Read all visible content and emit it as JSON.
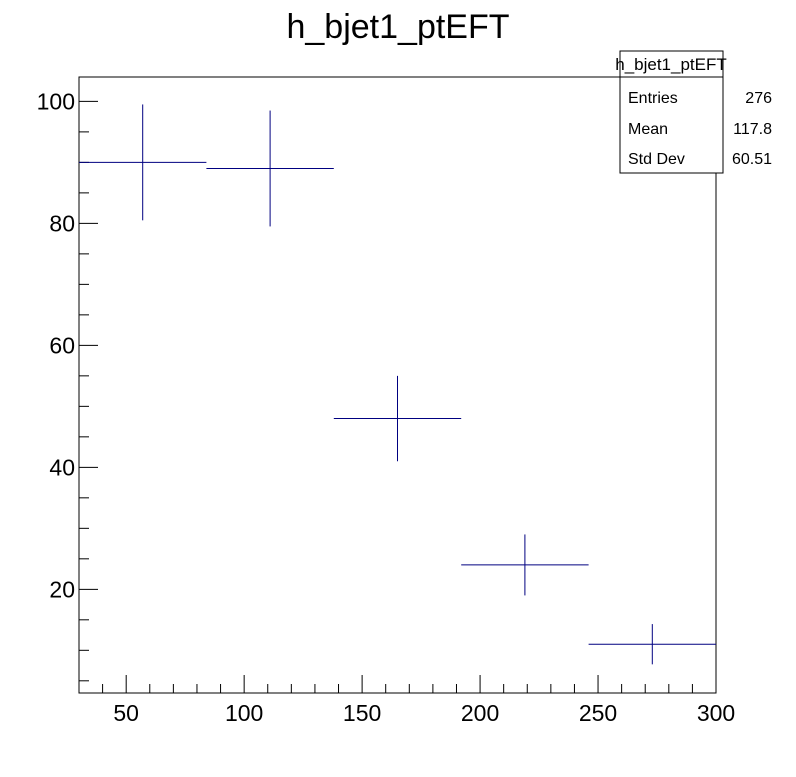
{
  "chart_data": {
    "type": "scatter",
    "title": "h_bjet1_ptEFT",
    "xlabel": "",
    "ylabel": "",
    "xlim": [
      30,
      300
    ],
    "ylim": [
      3,
      104
    ],
    "grid": false,
    "x_ticks": [
      50,
      100,
      150,
      200,
      250,
      300
    ],
    "y_ticks": [
      20,
      40,
      60,
      80,
      100
    ],
    "series": [
      {
        "color": "#000080",
        "points": [
          {
            "x": 57,
            "y": 90,
            "xlo": 30,
            "xhi": 84,
            "ylo": 80.5,
            "yhi": 99.5
          },
          {
            "x": 111,
            "y": 89,
            "xlo": 84,
            "xhi": 138,
            "ylo": 79.5,
            "yhi": 98.5
          },
          {
            "x": 165,
            "y": 48,
            "xlo": 138,
            "xhi": 192,
            "ylo": 41,
            "yhi": 55
          },
          {
            "x": 219,
            "y": 24,
            "xlo": 192,
            "xhi": 246,
            "ylo": 19,
            "yhi": 29
          },
          {
            "x": 273,
            "y": 11,
            "xlo": 246,
            "xhi": 300,
            "ylo": 7.7,
            "yhi": 14.3
          }
        ]
      }
    ],
    "stats_box": {
      "title": "h_bjet1_ptEFT",
      "rows": [
        {
          "label": "Entries",
          "value": "276"
        },
        {
          "label": "Mean",
          "value": "117.8"
        },
        {
          "label": "Std Dev",
          "value": "60.51"
        }
      ]
    }
  }
}
